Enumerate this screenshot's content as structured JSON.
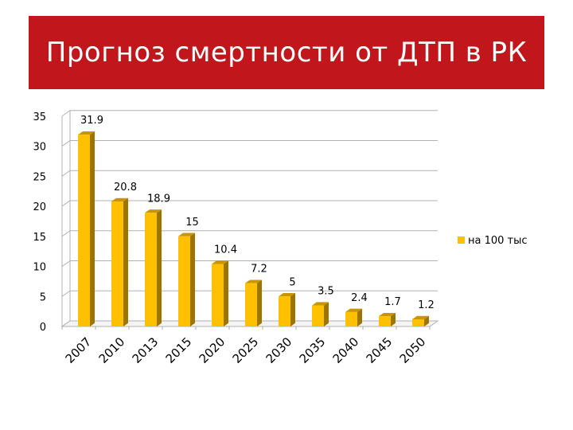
{
  "title": "Прогноз смертности от ДТП в РК",
  "colors": {
    "title_bg": "#c0161c",
    "bar_front": "#ffc000",
    "bar_side": "#9c7500",
    "bar_top": "#c79600",
    "grid": "#b0b0b0"
  },
  "chart_data": {
    "type": "bar",
    "categories": [
      "2007",
      "2010",
      "2013",
      "2015",
      "2020",
      "2025",
      "2030",
      "2035",
      "2040",
      "2045",
      "2050"
    ],
    "series": [
      {
        "name": "на 100 тыс",
        "values": [
          31.9,
          20.8,
          18.9,
          15,
          10.4,
          7.2,
          5,
          3.5,
          2.4,
          1.7,
          1.2
        ],
        "labels": [
          "31.9",
          "20.8",
          "18.9",
          "15",
          "10.4",
          "7.2",
          "5",
          "3.5",
          "2.4",
          "1.7",
          "1.2"
        ]
      }
    ],
    "ylim": [
      0,
      35
    ],
    "yticks": [
      0,
      5,
      10,
      15,
      20,
      25,
      30,
      35
    ],
    "grid": true,
    "legend": "right",
    "three_d": true
  }
}
